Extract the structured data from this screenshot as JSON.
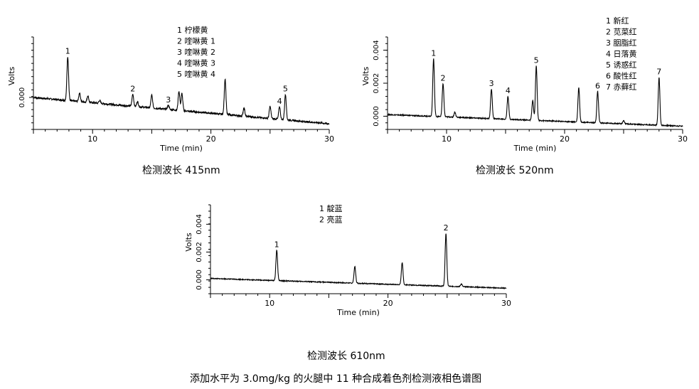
{
  "figure_caption": "添加水平为 3.0mg/kg 的火腿中 11 种合成着色剂检测液相色谱图",
  "chart_data": [
    {
      "type": "line",
      "caption": "检测波长 415nm",
      "xlabel": "Time (min)",
      "ylabel": "Volts",
      "xlim": [
        5,
        30
      ],
      "x_ticks": [
        10,
        20,
        30
      ],
      "y_ticks": [
        {
          "value": 0.0,
          "label": "0.000"
        }
      ],
      "ylim": [
        -0.0045,
        0.0085
      ],
      "grid": false,
      "baseline": {
        "start": 0.0,
        "end": -0.0037,
        "noise": 0.00012
      },
      "legend": [
        "1 柠檬黄",
        "2 喹啉黄 1",
        "3 喹啉黄 2",
        "4 喹啉黄 3",
        "5 喹啉黄 4"
      ],
      "peaks": [
        {
          "t": 7.9,
          "h": 0.0062,
          "label": "1"
        },
        {
          "t": 8.9,
          "h": 0.0012
        },
        {
          "t": 9.6,
          "h": 0.0009
        },
        {
          "t": 10.6,
          "h": 0.0004
        },
        {
          "t": 13.4,
          "h": 0.0017,
          "label": "2"
        },
        {
          "t": 13.8,
          "h": 0.0007
        },
        {
          "t": 15.0,
          "h": 0.0018
        },
        {
          "t": 16.4,
          "h": 0.0006,
          "label": "3"
        },
        {
          "t": 17.3,
          "h": 0.0027
        },
        {
          "t": 17.55,
          "h": 0.0024
        },
        {
          "t": 21.2,
          "h": 0.005
        },
        {
          "t": 22.8,
          "h": 0.0011
        },
        {
          "t": 25.0,
          "h": 0.0017
        },
        {
          "t": 25.8,
          "h": 0.0018,
          "label": "4"
        },
        {
          "t": 26.3,
          "h": 0.0036,
          "label": "5"
        }
      ]
    },
    {
      "type": "line",
      "caption": "检测波长 520nm",
      "xlabel": "Time (min)",
      "ylabel": "Volts",
      "xlim": [
        5,
        30
      ],
      "x_ticks": [
        10,
        20,
        30
      ],
      "y_ticks": [
        {
          "value": 0.0,
          "label": "0.000"
        },
        {
          "value": 0.002,
          "label": "0.002"
        },
        {
          "value": 0.004,
          "label": "0.004"
        }
      ],
      "ylim": [
        -0.0008,
        0.0048
      ],
      "grid": false,
      "baseline": {
        "start": 0.0001,
        "end": -0.0006,
        "noise": 3e-05
      },
      "legend": [
        "1 新红",
        "2 苋菜红",
        "3 胭脂红",
        "4 日落黄",
        "5 诱惑红",
        "6 酸性红",
        "7 赤藓红"
      ],
      "peaks": [
        {
          "t": 8.9,
          "h": 0.0035,
          "label": "1"
        },
        {
          "t": 9.7,
          "h": 0.002,
          "label": "2"
        },
        {
          "t": 10.7,
          "h": 0.0003
        },
        {
          "t": 13.8,
          "h": 0.0018,
          "label": "3"
        },
        {
          "t": 15.2,
          "h": 0.0014,
          "label": "4"
        },
        {
          "t": 17.3,
          "h": 0.0012
        },
        {
          "t": 17.6,
          "h": 0.0033,
          "label": "5"
        },
        {
          "t": 21.2,
          "h": 0.0021
        },
        {
          "t": 22.8,
          "h": 0.0019,
          "label": "6"
        },
        {
          "t": 25.0,
          "h": 0.0002
        },
        {
          "t": 28.0,
          "h": 0.0029,
          "label": "7"
        }
      ]
    },
    {
      "type": "line",
      "caption": "检测波长 610nm",
      "xlabel": "Time (min)",
      "ylabel": "Volts",
      "xlim": [
        5,
        30
      ],
      "x_ticks": [
        10,
        20,
        30
      ],
      "y_ticks": [
        {
          "value": 0.0,
          "label": "0.000"
        },
        {
          "value": 0.002,
          "label": "0.002"
        },
        {
          "value": 0.004,
          "label": "0.004"
        }
      ],
      "ylim": [
        -0.001,
        0.0054
      ],
      "grid": false,
      "baseline": {
        "start": 0.0001,
        "end": -0.0006,
        "noise": 3e-05
      },
      "legend": [
        "1 靛蓝",
        "2 亮蓝"
      ],
      "peaks": [
        {
          "t": 10.6,
          "h": 0.0022,
          "label": "1"
        },
        {
          "t": 17.2,
          "h": 0.0012
        },
        {
          "t": 21.2,
          "h": 0.0016
        },
        {
          "t": 24.9,
          "h": 0.0038,
          "label": "2"
        },
        {
          "t": 26.2,
          "h": 0.0002
        }
      ]
    }
  ]
}
